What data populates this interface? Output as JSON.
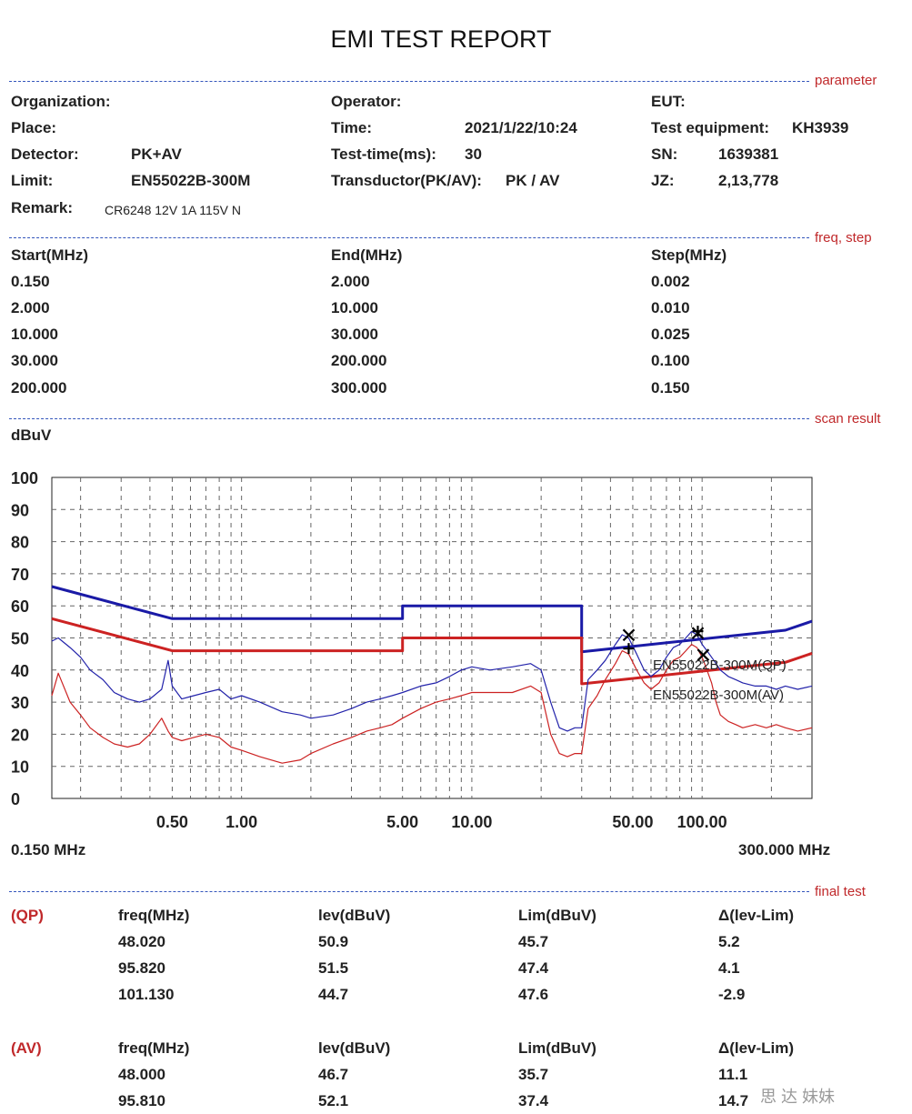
{
  "title": "EMI TEST REPORT",
  "sections": {
    "parameter": "parameter",
    "freq_step": "freq, step",
    "scan_result": "scan result",
    "final_test": "final test"
  },
  "parameters": {
    "organization_label": "Organization:",
    "place_label": "Place:",
    "detector_label": "Detector:",
    "detector_value": "PK+AV",
    "limit_label": "Limit:",
    "limit_value": "EN55022B-300M",
    "remark_label": "Remark:",
    "remark_value": "CR6248 12V 1A 115V N",
    "operator_label": "Operator:",
    "time_label": "Time:",
    "time_value": "2021/1/22/10:24",
    "test_time_label": "Test-time(ms):",
    "test_time_value": "30",
    "transductor_label": "Transductor(PK/AV):",
    "transductor_value": "PK  /  AV",
    "eut_label": "EUT:",
    "test_equipment_label": "Test equipment:",
    "test_equipment_value": "KH3939",
    "sn_label": "SN:",
    "sn_value": "1639381",
    "jz_label": "JZ:",
    "jz_value": "2,13,778"
  },
  "freq_table": {
    "headers": [
      "Start(MHz)",
      "End(MHz)",
      "Step(MHz)"
    ],
    "rows": [
      [
        "0.150",
        "2.000",
        "0.002"
      ],
      [
        "2.000",
        "10.000",
        "0.010"
      ],
      [
        "10.000",
        "30.000",
        "0.025"
      ],
      [
        "30.000",
        "200.000",
        "0.100"
      ],
      [
        "200.000",
        "300.000",
        "0.150"
      ]
    ]
  },
  "chart_data": {
    "type": "line",
    "ylabel": "dBuV",
    "ylim": [
      0,
      100
    ],
    "xlim": [
      0.15,
      300
    ],
    "x_scale": "log",
    "grid": true,
    "y_ticks": [
      "100",
      "90",
      "80",
      "70",
      "60",
      "50",
      "40",
      "30",
      "20",
      "10",
      "0"
    ],
    "x_ticks": [
      {
        "value": 0.5,
        "label": "0.50"
      },
      {
        "value": 1,
        "label": "1.00"
      },
      {
        "value": 5,
        "label": "5.00"
      },
      {
        "value": 10,
        "label": "10.00"
      },
      {
        "value": 50,
        "label": "50.00"
      },
      {
        "value": 100,
        "label": "100.00"
      }
    ],
    "x_start_label": "0.150 MHz",
    "x_end_label": "300.000 MHz",
    "series": [
      {
        "name": "EN55022B-300M(QP)",
        "color": "#1a1aa6",
        "x": [
          0.15,
          0.5,
          5,
          5,
          30,
          30,
          230,
          230,
          300
        ],
        "y": [
          66,
          56,
          56,
          60,
          60,
          45.7,
          52.4,
          52.4,
          55.2
        ]
      },
      {
        "name": "EN55022B-300M(AV)",
        "color": "#cc2222",
        "x": [
          0.15,
          0.5,
          5,
          5,
          30,
          30,
          230,
          230,
          300
        ],
        "y": [
          56,
          46,
          46,
          50,
          50,
          35.7,
          42.4,
          42.4,
          45.2
        ]
      },
      {
        "name": "",
        "color": "#2222aa",
        "x": [
          0.15,
          0.16,
          0.18,
          0.2,
          0.22,
          0.25,
          0.28,
          0.32,
          0.36,
          0.4,
          0.45,
          0.48,
          0.5,
          0.55,
          0.62,
          0.7,
          0.8,
          0.9,
          1.0,
          1.2,
          1.5,
          1.8,
          2.0,
          2.5,
          3.0,
          3.5,
          4.0,
          4.5,
          5.0,
          6.0,
          7.0,
          8.0,
          9.0,
          10,
          12,
          15,
          18,
          20,
          22,
          24,
          26,
          28,
          30,
          32,
          35,
          38,
          42,
          45,
          48,
          52,
          56,
          60,
          65,
          70,
          75,
          80,
          85,
          90,
          95,
          100,
          105,
          110,
          115,
          120,
          130,
          140,
          150,
          170,
          190,
          210,
          230,
          260,
          300
        ],
        "y": [
          49,
          50,
          47,
          44,
          40,
          37,
          33,
          31,
          30,
          31,
          34,
          43,
          35,
          31,
          32,
          33,
          34,
          31,
          32,
          30,
          27,
          26,
          25,
          26,
          28,
          30,
          31,
          32,
          33,
          35,
          36,
          38,
          40,
          41,
          40,
          41,
          42,
          40,
          30,
          22,
          21,
          22,
          22,
          37,
          40,
          43,
          48,
          51,
          50,
          45,
          40,
          38,
          40,
          44,
          47,
          48,
          50,
          52,
          51,
          48,
          46,
          44,
          42,
          40,
          38,
          37,
          36,
          35,
          35,
          34,
          35,
          34,
          35
        ]
      },
      {
        "name": "",
        "color": "#cc2222",
        "x": [
          0.15,
          0.16,
          0.18,
          0.2,
          0.22,
          0.25,
          0.28,
          0.32,
          0.36,
          0.4,
          0.45,
          0.48,
          0.5,
          0.55,
          0.62,
          0.7,
          0.8,
          0.9,
          1.0,
          1.2,
          1.5,
          1.8,
          2.0,
          2.5,
          3.0,
          3.5,
          4.0,
          4.5,
          5.0,
          6.0,
          7.0,
          8.0,
          9.0,
          10,
          12,
          15,
          18,
          20,
          22,
          24,
          26,
          28,
          30,
          32,
          35,
          38,
          42,
          45,
          48,
          52,
          56,
          60,
          65,
          70,
          75,
          80,
          85,
          90,
          95,
          100,
          105,
          110,
          115,
          120,
          130,
          140,
          150,
          170,
          190,
          210,
          230,
          260,
          300
        ],
        "y": [
          32,
          39,
          30,
          26,
          22,
          19,
          17,
          16,
          17,
          20,
          25,
          21,
          19,
          18,
          19,
          20,
          19,
          16,
          15,
          13,
          11,
          12,
          14,
          17,
          19,
          21,
          22,
          23,
          25,
          28,
          30,
          31,
          32,
          33,
          33,
          33,
          35,
          33,
          20,
          14,
          13,
          14,
          14,
          28,
          32,
          37,
          42,
          46,
          45,
          40,
          36,
          34,
          36,
          40,
          43,
          44,
          46,
          48,
          47,
          44,
          40,
          36,
          30,
          26,
          24,
          23,
          22,
          23,
          22,
          23,
          22,
          21,
          22
        ]
      }
    ],
    "markers": [
      {
        "x": 48.02,
        "y": 50.9,
        "symbol": "x"
      },
      {
        "x": 48.0,
        "y": 46.7,
        "symbol": "+"
      },
      {
        "x": 95.82,
        "y": 51.5,
        "symbol": "x"
      },
      {
        "x": 95.81,
        "y": 52.1,
        "symbol": "+"
      },
      {
        "x": 101.13,
        "y": 44.7,
        "symbol": "x"
      }
    ],
    "annotations": [
      "EN55022B-300M(QP)",
      "EN55022B-300M(AV)"
    ]
  },
  "final_test": {
    "headers": [
      "freq(MHz)",
      "lev(dBuV)",
      "Lim(dBuV)",
      "Δ(lev-Lim)"
    ],
    "qp_label": "(QP)",
    "qp_rows": [
      [
        "48.020",
        "50.9",
        "45.7",
        "5.2"
      ],
      [
        "95.820",
        "51.5",
        "47.4",
        "4.1"
      ],
      [
        "101.130",
        "44.7",
        "47.6",
        "-2.9"
      ]
    ],
    "av_label": "(AV)",
    "av_rows": [
      [
        "48.000",
        "46.7",
        "35.7",
        "11.1"
      ],
      [
        "95.810",
        "52.1",
        "37.4",
        "14.7"
      ]
    ]
  },
  "watermark": "思  达  妹妹"
}
